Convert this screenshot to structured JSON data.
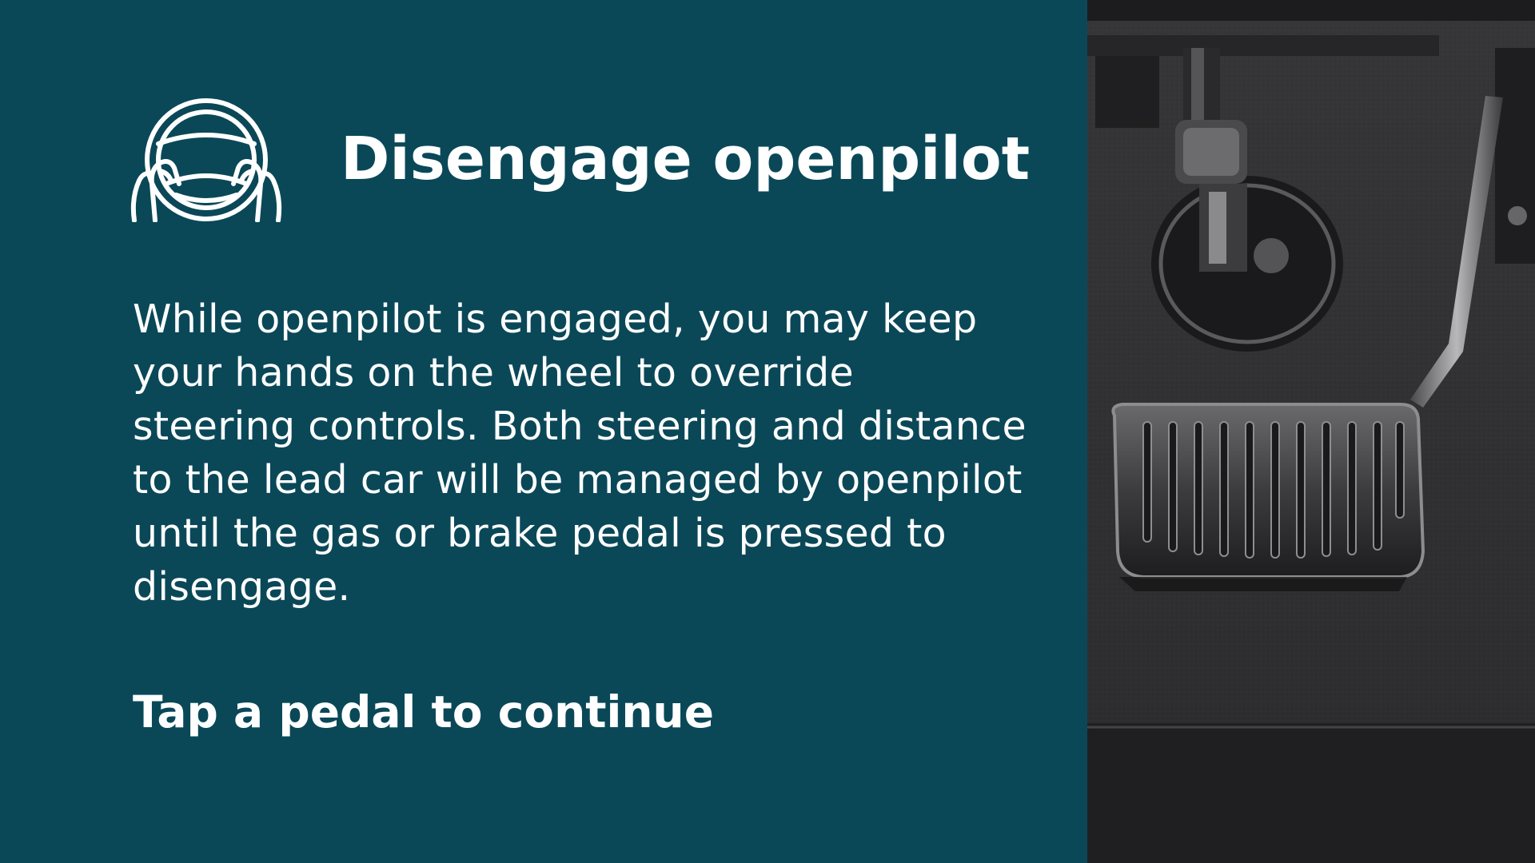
{
  "title": "Disengage openpilot",
  "body": "While openpilot is engaged, you may keep your hands on the wheel to override steering controls. Both steering and distance to the lead car will be managed by openpilot until the gas or brake pedal is pressed to disengage.",
  "prompt": "Tap a pedal to continue",
  "icons": {
    "header": "steering-wheel-with-hands-icon"
  },
  "colors": {
    "background": "#0a4858",
    "text": "#ffffff"
  }
}
